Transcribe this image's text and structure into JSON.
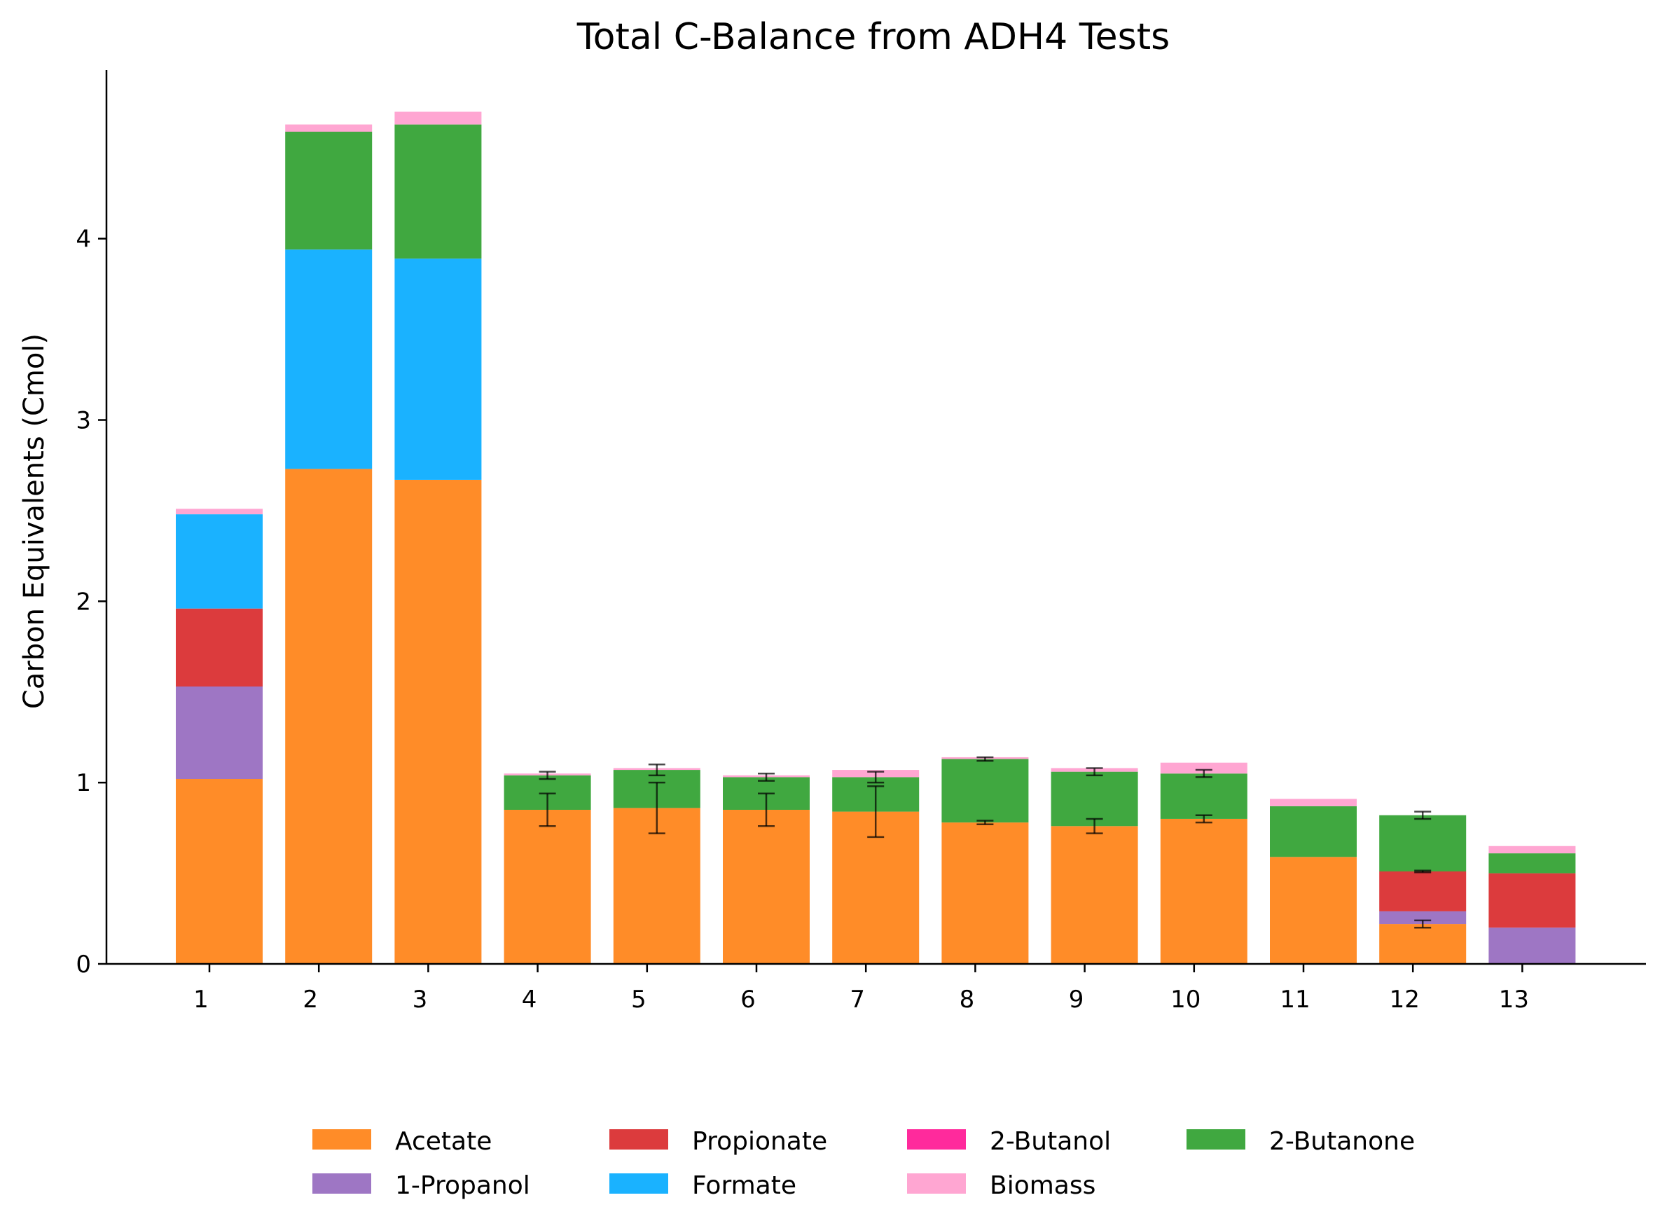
{
  "chart_data": {
    "type": "bar",
    "stacked": true,
    "title": "Total C-Balance from ADH4 Tests",
    "xlabel": "",
    "ylabel": "Carbon Equivalents (Cmol)",
    "ylim": [
      0,
      4.93
    ],
    "yticks": [
      0,
      1,
      2,
      3,
      4
    ],
    "grid": false,
    "legend_position": "bottom-center",
    "categories": [
      "1",
      "2",
      "3",
      "4",
      "5",
      "6",
      "7",
      "8",
      "9",
      "10",
      "11",
      "12",
      "13"
    ],
    "series": [
      {
        "name": "Acetate",
        "color": "#ff8c28",
        "values": [
          1.02,
          2.73,
          2.67,
          0.85,
          0.86,
          0.85,
          0.84,
          0.78,
          0.76,
          0.8,
          0.59,
          0.22,
          0.0
        ],
        "errors": [
          null,
          null,
          null,
          0.09,
          0.14,
          0.09,
          0.14,
          0.01,
          0.04,
          0.02,
          null,
          0.02,
          null
        ]
      },
      {
        "name": "1-Propanol",
        "color": "#9e76c4",
        "values": [
          0.51,
          0.0,
          0.0,
          0.0,
          0.0,
          0.0,
          0.0,
          0.0,
          0.0,
          0.0,
          0.0,
          0.07,
          0.2
        ],
        "errors": [
          null,
          null,
          null,
          null,
          null,
          null,
          null,
          null,
          null,
          null,
          null,
          null,
          null
        ]
      },
      {
        "name": "Propionate",
        "color": "#dc3b3d",
        "values": [
          0.43,
          0.0,
          0.0,
          0.0,
          0.0,
          0.0,
          0.0,
          0.0,
          0.0,
          0.0,
          0.0,
          0.22,
          0.3
        ],
        "errors": [
          null,
          null,
          null,
          null,
          null,
          null,
          null,
          null,
          null,
          null,
          null,
          0.005,
          null
        ]
      },
      {
        "name": "Formate",
        "color": "#1ab2ff",
        "values": [
          0.52,
          1.21,
          1.22,
          0.0,
          0.0,
          0.0,
          0.0,
          0.0,
          0.0,
          0.0,
          0.0,
          0.0,
          0.0
        ],
        "errors": [
          null,
          null,
          null,
          null,
          null,
          null,
          null,
          null,
          null,
          null,
          null,
          null,
          null
        ]
      },
      {
        "name": "2-Butanol",
        "color": "#ff2a9c",
        "values": [
          0,
          0,
          0,
          0,
          0,
          0,
          0,
          0,
          0,
          0,
          0,
          0,
          0
        ],
        "errors": [
          null,
          null,
          null,
          null,
          null,
          null,
          null,
          null,
          null,
          null,
          null,
          null,
          null
        ]
      },
      {
        "name": "2-Butanone",
        "color": "#40a840",
        "values": [
          0.0,
          0.65,
          0.74,
          0.19,
          0.21,
          0.18,
          0.19,
          0.35,
          0.3,
          0.25,
          0.28,
          0.31,
          0.11
        ],
        "errors": [
          null,
          null,
          null,
          0.02,
          0.03,
          0.02,
          0.03,
          0.01,
          0.02,
          0.02,
          null,
          0.02,
          null
        ]
      },
      {
        "name": "Biomass",
        "color": "#ffa6d2",
        "values": [
          0.03,
          0.04,
          0.07,
          0.01,
          0.01,
          0.01,
          0.04,
          0.01,
          0.02,
          0.06,
          0.04,
          0.0,
          0.04
        ],
        "errors": [
          null,
          null,
          null,
          null,
          null,
          null,
          null,
          null,
          null,
          null,
          null,
          null,
          null
        ]
      }
    ],
    "legend_order": [
      "Acetate",
      "1-Propanol",
      "Propionate",
      "Formate",
      "2-Butanol",
      "Biomass",
      "2-Butanone"
    ]
  }
}
